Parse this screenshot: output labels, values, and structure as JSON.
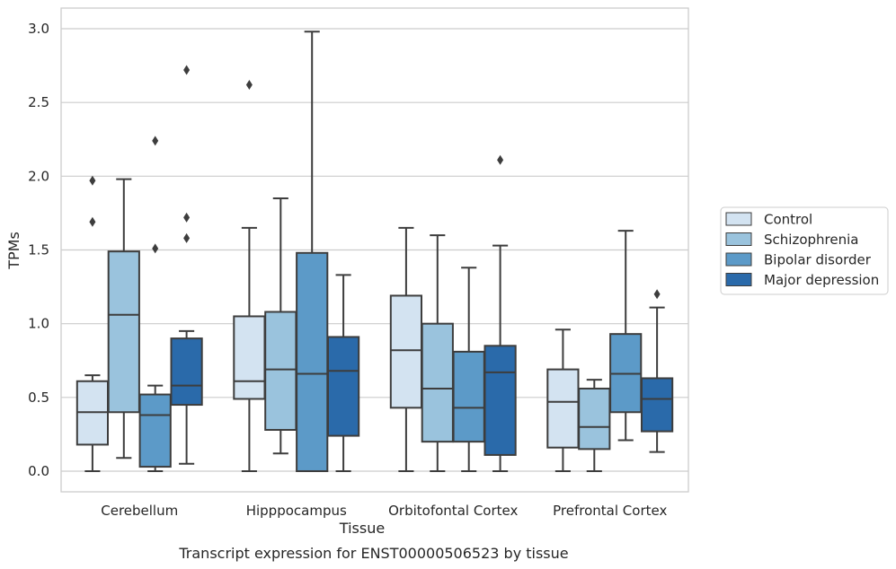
{
  "chart_data": {
    "type": "boxplot",
    "caption": "Transcript expression for ENST00000506523 by tissue",
    "xlabel": "Tissue",
    "ylabel": "TPMs",
    "ylim": [
      -0.14,
      3.14
    ],
    "yticks": [
      "0.0",
      "0.5",
      "1.0",
      "1.5",
      "2.0",
      "2.5",
      "3.0"
    ],
    "grid": true,
    "legend_position": "right",
    "categories": [
      "Cerebellum",
      "Hipppocampus",
      "Orbitofontal Cortex",
      "Prefrontal Cortex"
    ],
    "series": [
      {
        "name": "Control",
        "color": "#d3e3f1",
        "boxes": [
          {
            "whisker_low": 0.0,
            "q1": 0.18,
            "median": 0.4,
            "q3": 0.61,
            "whisker_high": 0.65,
            "outliers": [
              1.69,
              1.97
            ]
          },
          {
            "whisker_low": 0.0,
            "q1": 0.49,
            "median": 0.61,
            "q3": 1.05,
            "whisker_high": 1.65,
            "outliers": [
              2.62
            ]
          },
          {
            "whisker_low": 0.0,
            "q1": 0.43,
            "median": 0.82,
            "q3": 1.19,
            "whisker_high": 1.65,
            "outliers": []
          },
          {
            "whisker_low": 0.0,
            "q1": 0.16,
            "median": 0.47,
            "q3": 0.69,
            "whisker_high": 0.96,
            "outliers": []
          }
        ]
      },
      {
        "name": "Schizophrenia",
        "color": "#9ac3dd",
        "boxes": [
          {
            "whisker_low": 0.09,
            "q1": 0.4,
            "median": 1.06,
            "q3": 1.49,
            "whisker_high": 1.98,
            "outliers": []
          },
          {
            "whisker_low": 0.12,
            "q1": 0.28,
            "median": 0.69,
            "q3": 1.08,
            "whisker_high": 1.85,
            "outliers": []
          },
          {
            "whisker_low": 0.0,
            "q1": 0.2,
            "median": 0.56,
            "q3": 1.0,
            "whisker_high": 1.6,
            "outliers": []
          },
          {
            "whisker_low": 0.0,
            "q1": 0.15,
            "median": 0.3,
            "q3": 0.56,
            "whisker_high": 0.62,
            "outliers": []
          }
        ]
      },
      {
        "name": "Bipolar disorder",
        "color": "#5c9ac8",
        "boxes": [
          {
            "whisker_low": 0.0,
            "q1": 0.03,
            "median": 0.38,
            "q3": 0.52,
            "whisker_high": 0.58,
            "outliers": [
              1.51,
              2.24
            ]
          },
          {
            "whisker_low": 0.0,
            "q1": 0.0,
            "median": 0.66,
            "q3": 1.48,
            "whisker_high": 2.98,
            "outliers": []
          },
          {
            "whisker_low": 0.0,
            "q1": 0.2,
            "median": 0.43,
            "q3": 0.81,
            "whisker_high": 1.38,
            "outliers": []
          },
          {
            "whisker_low": 0.21,
            "q1": 0.4,
            "median": 0.66,
            "q3": 0.93,
            "whisker_high": 1.63,
            "outliers": []
          }
        ]
      },
      {
        "name": "Major depression",
        "color": "#2a6aaa",
        "boxes": [
          {
            "whisker_low": 0.05,
            "q1": 0.45,
            "median": 0.58,
            "q3": 0.9,
            "whisker_high": 0.95,
            "outliers": [
              1.58,
              1.72,
              2.72
            ]
          },
          {
            "whisker_low": 0.0,
            "q1": 0.24,
            "median": 0.68,
            "q3": 0.91,
            "whisker_high": 1.33,
            "outliers": []
          },
          {
            "whisker_low": 0.0,
            "q1": 0.11,
            "median": 0.67,
            "q3": 0.85,
            "whisker_high": 1.53,
            "outliers": [
              2.11
            ]
          },
          {
            "whisker_low": 0.13,
            "q1": 0.27,
            "median": 0.49,
            "q3": 0.63,
            "whisker_high": 1.11,
            "outliers": [
              1.2
            ]
          }
        ]
      }
    ]
  }
}
